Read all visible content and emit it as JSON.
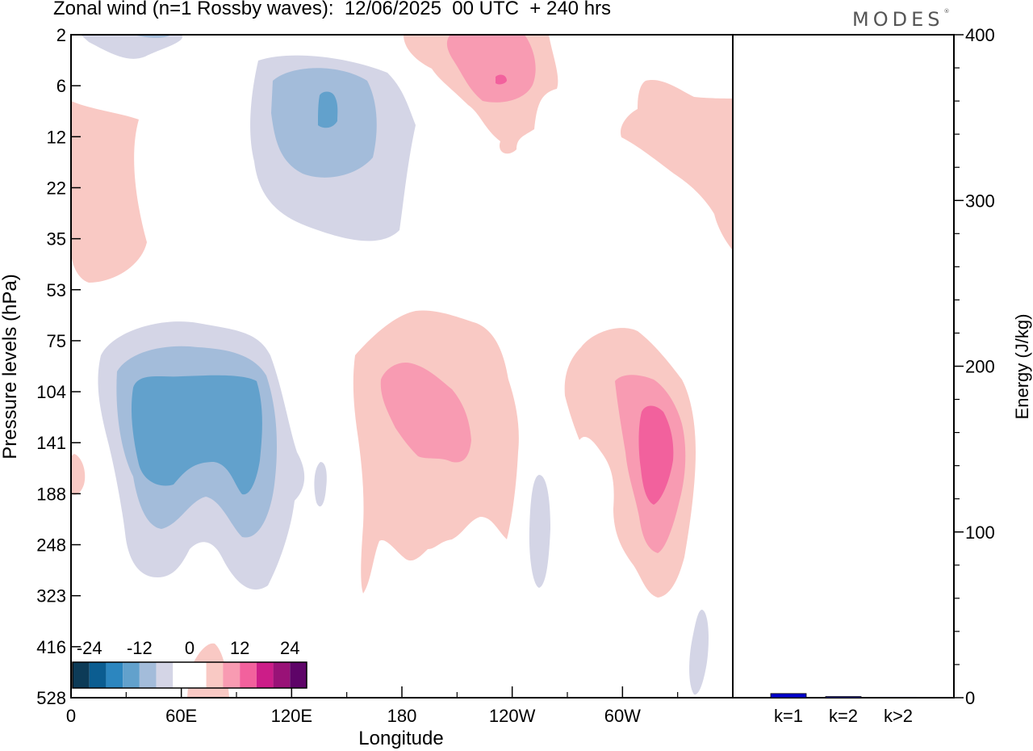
{
  "title": "Zonal wind (n=1 Rossby waves):  12/06/2025  00 UTC  + 240 hrs",
  "logo": {
    "text": "MODES",
    "mark": "®"
  },
  "chart_data": [
    {
      "type": "heatmap",
      "kind": "filled-contour",
      "xlabel": "Longitude",
      "ylabel": "Pressure levels (hPa)",
      "x_ticks": [
        "0",
        "60E",
        "120E",
        "180",
        "120W",
        "60W"
      ],
      "y_ticks": [
        "2",
        "6",
        "12",
        "22",
        "35",
        "53",
        "75",
        "104",
        "141",
        "188",
        "248",
        "323",
        "416",
        "528"
      ],
      "colorbar": {
        "labels": [
          "-24",
          "-12",
          "0",
          "12",
          "24"
        ],
        "colors": [
          "#0d3b57",
          "#0b5d91",
          "#2c86bf",
          "#62a1cc",
          "#a3bcda",
          "#d4d5e6",
          "#ffffff",
          "#ffffff",
          "#f9c9c4",
          "#f89bb2",
          "#f2619d",
          "#cc1d88",
          "#991277",
          "#5e0468"
        ]
      },
      "contour_colors": {
        "neg1": "#d4d5e6",
        "neg2": "#a3bcda",
        "neg3": "#62a1cc",
        "neg4": "#2c86bf",
        "pos1": "#f9c9c4",
        "pos2": "#f89bb2",
        "pos3": "#f2619d"
      }
    },
    {
      "type": "bar",
      "ylabel": "Energy (J/kg)",
      "categories": [
        "k=1",
        "k=2",
        "k>2"
      ],
      "values": [
        2.5,
        0.7,
        0.3
      ],
      "ylim": [
        0,
        400
      ],
      "y_ticks": [
        "0",
        "100",
        "200",
        "300",
        "400"
      ],
      "bar_color": "#0000cc"
    }
  ]
}
